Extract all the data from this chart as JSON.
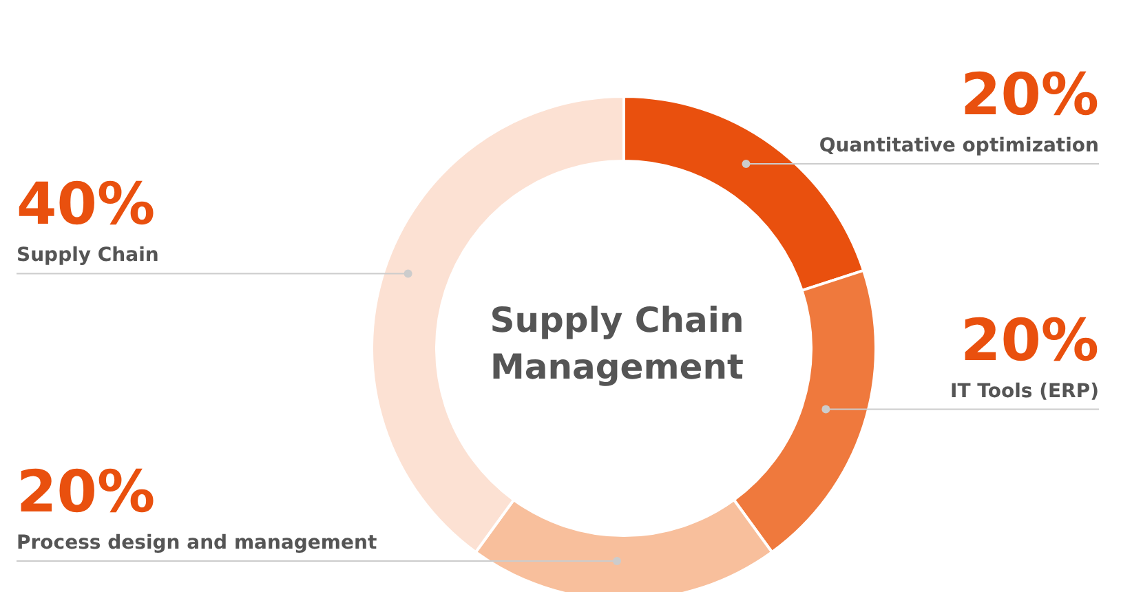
{
  "chart_data": {
    "type": "donut",
    "title": "Supply Chain Management",
    "categories": [
      "Quantitative optimization",
      "IT Tools (ERP)",
      "Process design and management",
      "Supply Chain"
    ],
    "values": [
      20,
      20,
      20,
      40
    ],
    "value_labels": [
      "20%",
      "20%",
      "20%",
      "40%"
    ],
    "colors": [
      "#e9500e",
      "#ef793d",
      "#f8bf9c",
      "#fce1d3"
    ]
  }
}
